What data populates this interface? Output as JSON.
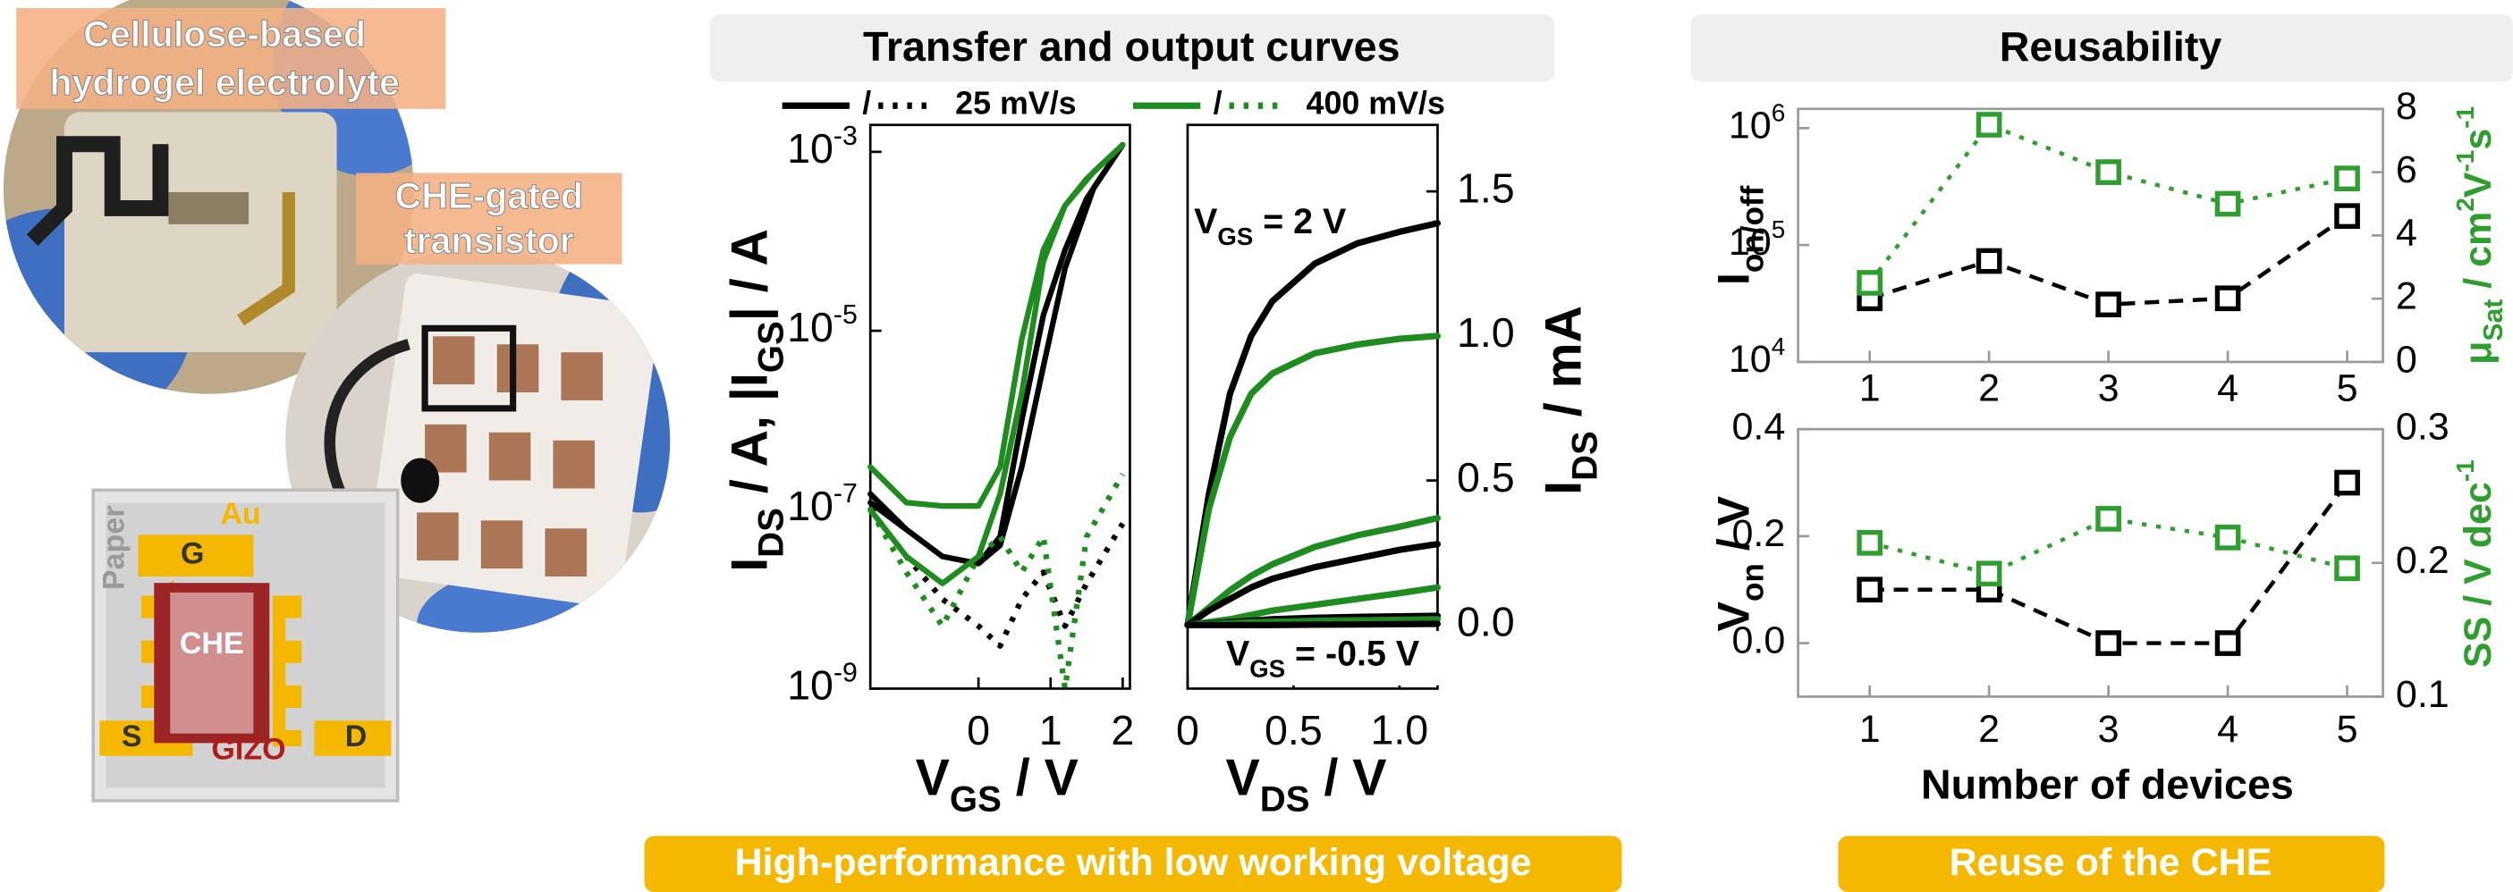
{
  "header": {
    "left_title": "Transfer and output curves",
    "right_title": "Reusability"
  },
  "footer": {
    "left": "High-performance with low working voltage",
    "right": "Reuse of the CHE"
  },
  "photo": {
    "label1": [
      "Cellulose-based",
      "hydrogel electrolyte"
    ],
    "label2": [
      "CHE-gated",
      "transistor"
    ]
  },
  "schematic": {
    "au": "Au",
    "gate": "G",
    "paper": "Paper",
    "che": "CHE",
    "source": "S",
    "drain": "D",
    "gizo": "GIZO"
  },
  "chart_data": [
    {
      "type": "line",
      "xlabel": [
        {
          "text": "V"
        },
        {
          "text": "GS",
          "sub": true
        },
        {
          "text": " / V"
        }
      ],
      "ylabel": [
        {
          "text": "I"
        },
        {
          "text": "DS",
          "sub": true
        },
        {
          "text": " / A, |I"
        },
        {
          "text": "GS",
          "sub": true
        },
        {
          "text": "| / A"
        }
      ],
      "xlim": [
        -1.5,
        2.1
      ],
      "xticks": [
        0,
        1,
        2
      ],
      "log_y": true,
      "ylim": [
        1e-09,
        0.002
      ],
      "yticks": [
        {
          "value": 1e-09,
          "label": "10",
          "exp": "-9"
        },
        {
          "value": 1e-07,
          "label": "10",
          "exp": "-7"
        },
        {
          "value": 1e-05,
          "label": "10",
          "exp": "-5"
        },
        {
          "value": 0.001,
          "label": "10",
          "exp": "-3"
        }
      ],
      "legend_sep": "/",
      "series": [
        {
          "name": "25 mV/s",
          "color": "#000000",
          "style": "solid",
          "x": [
            -1.5,
            -1,
            -0.5,
            0,
            0.3,
            0.6,
            0.9,
            1.2,
            1.5,
            2,
            1.6,
            1.2,
            0.9,
            0.6,
            0.3,
            0,
            -0.5,
            -1,
            -1.5
          ],
          "values": [
            1.5e-07,
            6e-08,
            3e-08,
            2.5e-08,
            5e-08,
            1e-06,
            1.5e-05,
            8e-05,
            0.0003,
            0.0012,
            0.0004,
            5e-05,
            4e-06,
            3e-07,
            4e-08,
            2.5e-08,
            3e-08,
            6e-08,
            1.2e-07
          ]
        },
        {
          "color": "#000000",
          "style": "dotted",
          "x": [
            -1.5,
            -1,
            -0.5,
            0,
            0.3,
            0.6,
            0.9,
            1.2,
            1.5,
            2
          ],
          "values": [
            1e-07,
            3e-08,
            1e-08,
            5e-09,
            3e-09,
            1e-08,
            2e-08,
            5e-09,
            1.5e-08,
            7e-08
          ]
        },
        {
          "name": "400 mV/s",
          "color": "#1e8c1e",
          "style": "solid",
          "x": [
            -1.5,
            -1,
            -0.5,
            0,
            0.3,
            0.6,
            0.9,
            1.2,
            1.5,
            2,
            1.6,
            1.2,
            0.9,
            0.6,
            0.3,
            0,
            -0.5,
            -1,
            -1.5
          ],
          "values": [
            3e-07,
            1.2e-07,
            1.1e-07,
            1.1e-07,
            3e-07,
            8e-06,
            8e-05,
            0.00025,
            0.0005,
            0.0012,
            0.0006,
            0.00025,
            6e-05,
            2e-06,
            1.5e-07,
            3e-08,
            1.5e-08,
            3e-08,
            1e-07
          ]
        },
        {
          "color": "#1e8c1e",
          "style": "dotted",
          "x": [
            -1.5,
            -1,
            -0.5,
            0,
            0.3,
            0.6,
            0.9,
            1.2,
            1.5,
            2
          ],
          "values": [
            1e-07,
            2e-08,
            5e-09,
            3e-08,
            5e-08,
            2e-08,
            5e-08,
            1e-09,
            5e-08,
            2.5e-07
          ]
        }
      ]
    },
    {
      "type": "line",
      "xlabel": [
        {
          "text": "V"
        },
        {
          "text": "DS",
          "sub": true
        },
        {
          "text": " / V"
        }
      ],
      "ylabel": [
        {
          "text": "I"
        },
        {
          "text": "DS",
          "sub": true
        },
        {
          "text": " / mA"
        }
      ],
      "xlim": [
        0,
        1.18
      ],
      "xticks": [
        0,
        0.5,
        {
          "value": 1,
          "label": "1.0"
        }
      ],
      "ylim": [
        -0.22,
        1.73
      ],
      "yticks": [
        {
          "value": 0,
          "label": "0.0"
        },
        0.5,
        {
          "value": 1,
          "label": "1.0"
        },
        1.5
      ],
      "annotations": [
        [
          {
            "text": "V"
          },
          {
            "text": "GS",
            "sub": true
          },
          {
            "text": " = 2 V"
          }
        ],
        [
          {
            "text": "V"
          },
          {
            "text": "GS",
            "sub": true
          },
          {
            "text": " = -0.5 V"
          }
        ]
      ],
      "x": [
        0,
        0.1,
        0.2,
        0.3,
        0.4,
        0.6,
        0.8,
        1.0,
        1.18
      ],
      "series": [
        {
          "color": "#000000",
          "style": "solid",
          "values": [
            0,
            0.45,
            0.8,
            1.0,
            1.12,
            1.25,
            1.32,
            1.36,
            1.39
          ]
        },
        {
          "color": "#1e8c1e",
          "style": "solid",
          "values": [
            0,
            0.4,
            0.65,
            0.8,
            0.87,
            0.94,
            0.97,
            0.99,
            1.0
          ]
        },
        {
          "color": "#1e8c1e",
          "style": "solid",
          "values": [
            0,
            0.06,
            0.12,
            0.17,
            0.21,
            0.27,
            0.31,
            0.34,
            0.37
          ]
        },
        {
          "color": "#000000",
          "style": "solid",
          "values": [
            0,
            0.05,
            0.09,
            0.13,
            0.16,
            0.2,
            0.23,
            0.26,
            0.28
          ]
        },
        {
          "color": "#1e8c1e",
          "style": "solid",
          "values": [
            0,
            0.01,
            0.02,
            0.035,
            0.05,
            0.07,
            0.09,
            0.11,
            0.13
          ]
        },
        {
          "color": "#000000",
          "style": "solid",
          "values": [
            0,
            0.005,
            0.01,
            0.015,
            0.02,
            0.025,
            0.028,
            0.03,
            0.032
          ]
        },
        {
          "color": "#1e8c1e",
          "style": "solid",
          "values": [
            0,
            0.003,
            0.006,
            0.009,
            0.011,
            0.014,
            0.016,
            0.018,
            0.02
          ]
        },
        {
          "color": "#000000",
          "style": "solid",
          "values": [
            0,
            0,
            0,
            0,
            0,
            0.001,
            0.002,
            0.003,
            0.004
          ]
        }
      ]
    },
    {
      "type": "line",
      "markers": "square",
      "ylabel": [
        {
          "text": "I"
        },
        {
          "text": "on/off",
          "sub": true
        }
      ],
      "y2label": [
        {
          "text": "μ"
        },
        {
          "text": "Sat",
          "sub": true
        },
        {
          "text": " / cm"
        },
        {
          "text": "2",
          "sup": true
        },
        {
          "text": "V"
        },
        {
          "text": "-1",
          "sup": true
        },
        {
          "text": "s"
        },
        {
          "text": "-1",
          "sup": true
        }
      ],
      "y2label_color": "#2e9e2e",
      "x": [
        1,
        2,
        3,
        4,
        5
      ],
      "xlim": [
        0.4,
        5.3
      ],
      "xticks": [
        1,
        2,
        3,
        4,
        5
      ],
      "log_y": true,
      "ylim": [
        10000,
        1460000
      ],
      "yticks": [
        {
          "value": 10000,
          "label": "10",
          "exp": "4"
        },
        {
          "value": 100000,
          "label": "10",
          "exp": "5"
        },
        {
          "value": 1000000,
          "label": "10",
          "exp": "6"
        }
      ],
      "y2lim": [
        0,
        8
      ],
      "y2ticks": [
        0,
        2,
        4,
        6,
        8
      ],
      "series": [
        {
          "color": "#000000",
          "style": "dashed",
          "values": [
            35000,
            73000,
            31000,
            35000,
            177000
          ]
        },
        {
          "color": "#2e9e2e",
          "style": "dotted",
          "axis": "y2",
          "values": [
            2.5,
            7.5,
            6.0,
            5.0,
            5.8
          ]
        }
      ]
    },
    {
      "type": "line",
      "markers": "square",
      "xlabel": [
        {
          "text": "Number of devices"
        }
      ],
      "ylabel": [
        {
          "text": "V"
        },
        {
          "text": "on",
          "sub": true
        },
        {
          "text": " / V"
        }
      ],
      "y2label": [
        {
          "text": "SS / V dec"
        },
        {
          "text": "-1",
          "sup": true
        }
      ],
      "y2label_color": "#2e9e2e",
      "x": [
        1,
        2,
        3,
        4,
        5
      ],
      "xlim": [
        0.4,
        5.3
      ],
      "xticks": [
        1,
        2,
        3,
        4,
        5
      ],
      "ylim": [
        -0.1,
        0.4
      ],
      "yticks": [
        {
          "value": 0,
          "label": "0.0"
        },
        0.2,
        0.4
      ],
      "y2lim": [
        0.1,
        0.3
      ],
      "y2ticks": [
        0.1,
        0.2,
        0.3
      ],
      "series": [
        {
          "color": "#000000",
          "style": "dashed",
          "values": [
            0.1,
            0.1,
            0,
            0,
            0.3
          ]
        },
        {
          "color": "#2e9e2e",
          "style": "dotted",
          "axis": "y2",
          "values": [
            0.215,
            0.192,
            0.233,
            0.219,
            0.196
          ]
        }
      ]
    }
  ]
}
